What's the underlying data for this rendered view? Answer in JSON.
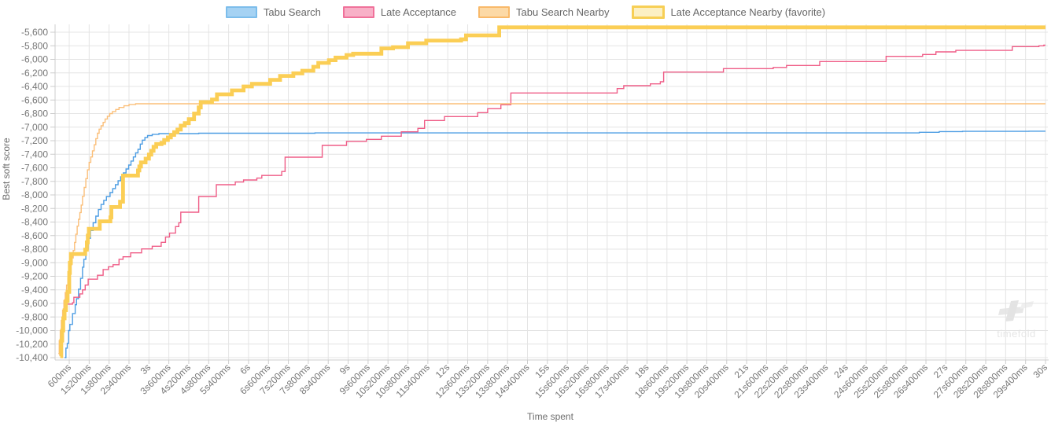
{
  "watermark": {
    "text": "timefold"
  },
  "chart_data": {
    "type": "line",
    "title": "",
    "xlabel": "Time spent",
    "ylabel": "Best soft score",
    "grid": true,
    "legend_position": "top-center",
    "x_tick_labels": [
      "600ms",
      "1s200ms",
      "1s800ms",
      "2s400ms",
      "3s",
      "3s600ms",
      "4s200ms",
      "4s800ms",
      "5s400ms",
      "6s",
      "6s600ms",
      "7s200ms",
      "7s800ms",
      "8s400ms",
      "9s",
      "9s600ms",
      "10s200ms",
      "10s800ms",
      "11s400ms",
      "12s",
      "12s600ms",
      "13s200ms",
      "13s800ms",
      "14s400ms",
      "15s",
      "15s600ms",
      "16s200ms",
      "16s800ms",
      "17s400ms",
      "18s",
      "18s600ms",
      "19s200ms",
      "19s800ms",
      "20s400ms",
      "21s",
      "21s600ms",
      "22s200ms",
      "22s800ms",
      "23s400ms",
      "24s",
      "24s600ms",
      "25s200ms",
      "25s800ms",
      "26s400ms",
      "27s",
      "27s600ms",
      "28s200ms",
      "28s800ms",
      "29s400ms",
      "30s"
    ],
    "y_tick_labels": [
      "-5,600",
      "-5,800",
      "-6,000",
      "-6,200",
      "-6,400",
      "-6,600",
      "-6,800",
      "-7,000",
      "-7,200",
      "-7,400",
      "-7,600",
      "-7,800",
      "-8,000",
      "-8,200",
      "-8,400",
      "-8,600",
      "-8,800",
      "-9,000",
      "-9,200",
      "-9,400",
      "-9,600",
      "-9,800",
      "-10,000",
      "-10,200",
      "-10,400"
    ],
    "x_range_seconds": [
      0.17,
      30
    ],
    "y_range": [
      -10440,
      -5480
    ],
    "colors": {
      "grid": "#e4e4e4",
      "axis": "#cccccc",
      "tick_label": "#777777",
      "axis_title": "#6e6e6e",
      "legend_text": "#666666",
      "watermark": "#e8e8e8"
    },
    "series": [
      {
        "name": "Tabu Search",
        "color": "#4d9de3",
        "chip_fill": "#a5d2f3",
        "chip_border": "#7cbdeb",
        "width": 1.4,
        "favorite": false,
        "points": [
          [
            0.46,
            -10400
          ],
          [
            0.5,
            -10260
          ],
          [
            0.54,
            -10190
          ],
          [
            0.58,
            -10000
          ],
          [
            0.62,
            -9910
          ],
          [
            0.7,
            -9750
          ],
          [
            0.78,
            -9620
          ],
          [
            0.82,
            -9530
          ],
          [
            0.88,
            -9390
          ],
          [
            0.94,
            -9230
          ],
          [
            1.0,
            -9065
          ],
          [
            1.04,
            -8950
          ],
          [
            1.1,
            -8800
          ],
          [
            1.17,
            -8640
          ],
          [
            1.24,
            -8525
          ],
          [
            1.32,
            -8410
          ],
          [
            1.4,
            -8313
          ],
          [
            1.48,
            -8216
          ],
          [
            1.56,
            -8140
          ],
          [
            1.64,
            -8080
          ],
          [
            1.72,
            -8023
          ],
          [
            1.83,
            -7965
          ],
          [
            1.91,
            -7907
          ],
          [
            1.99,
            -7849
          ],
          [
            2.07,
            -7790
          ],
          [
            2.15,
            -7732
          ],
          [
            2.23,
            -7675
          ],
          [
            2.31,
            -7617
          ],
          [
            2.39,
            -7559
          ],
          [
            2.46,
            -7500
          ],
          [
            2.53,
            -7440
          ],
          [
            2.6,
            -7380
          ],
          [
            2.67,
            -7327
          ],
          [
            2.74,
            -7250
          ],
          [
            2.8,
            -7192
          ],
          [
            2.88,
            -7153
          ],
          [
            2.96,
            -7125
          ],
          [
            3.1,
            -7106
          ],
          [
            3.3,
            -7096
          ],
          [
            4.5,
            -7090
          ],
          [
            8.0,
            -7085
          ],
          [
            26.2,
            -7076
          ],
          [
            26.8,
            -7066
          ],
          [
            27.5,
            -7062
          ],
          [
            29.5,
            -7060
          ]
        ]
      },
      {
        "name": "Late Acceptance",
        "color": "#ef5d87",
        "chip_fill": "#f8b0c7",
        "chip_border": "#f0719a",
        "width": 1.4,
        "favorite": false,
        "points": [
          [
            0.3,
            -10360
          ],
          [
            0.34,
            -10150
          ],
          [
            0.38,
            -9950
          ],
          [
            0.42,
            -9820
          ],
          [
            0.46,
            -9700
          ],
          [
            0.5,
            -9610
          ],
          [
            0.7,
            -9590
          ],
          [
            0.74,
            -9510
          ],
          [
            0.92,
            -9460
          ],
          [
            1.0,
            -9400
          ],
          [
            1.08,
            -9330
          ],
          [
            1.17,
            -9243
          ],
          [
            1.45,
            -9185
          ],
          [
            1.62,
            -9100
          ],
          [
            1.78,
            -9060
          ],
          [
            1.92,
            -9030
          ],
          [
            2.1,
            -8950
          ],
          [
            2.22,
            -8912
          ],
          [
            2.45,
            -8854
          ],
          [
            2.78,
            -8796
          ],
          [
            3.1,
            -8757
          ],
          [
            3.37,
            -8699
          ],
          [
            3.5,
            -8622
          ],
          [
            3.62,
            -8564
          ],
          [
            3.8,
            -8467
          ],
          [
            3.9,
            -8410
          ],
          [
            3.96,
            -8255
          ],
          [
            4.5,
            -8023
          ],
          [
            5.03,
            -7849
          ],
          [
            5.6,
            -7810
          ],
          [
            5.85,
            -7780
          ],
          [
            6.25,
            -7752
          ],
          [
            6.4,
            -7713
          ],
          [
            7.0,
            -7655
          ],
          [
            7.1,
            -7443
          ],
          [
            8.22,
            -7269
          ],
          [
            8.95,
            -7211
          ],
          [
            9.55,
            -7180
          ],
          [
            10.0,
            -7134
          ],
          [
            10.6,
            -7069
          ],
          [
            11.1,
            -7018
          ],
          [
            11.3,
            -6902
          ],
          [
            11.9,
            -6844
          ],
          [
            12.9,
            -6786
          ],
          [
            13.2,
            -6728
          ],
          [
            13.6,
            -6670
          ],
          [
            13.9,
            -6496
          ],
          [
            17.1,
            -6431
          ],
          [
            17.3,
            -6388
          ],
          [
            18.1,
            -6362
          ],
          [
            18.4,
            -6330
          ],
          [
            18.5,
            -6188
          ],
          [
            20.3,
            -6137
          ],
          [
            21.8,
            -6120
          ],
          [
            22.2,
            -6090
          ],
          [
            23.2,
            -6032
          ],
          [
            25.2,
            -5956
          ],
          [
            26.3,
            -5928
          ],
          [
            26.7,
            -5890
          ],
          [
            27.3,
            -5868
          ],
          [
            29.0,
            -5812
          ],
          [
            29.8,
            -5800
          ],
          [
            29.95,
            -5790
          ]
        ]
      },
      {
        "name": "Tabu Search Nearby",
        "color": "#fbbf79",
        "chip_fill": "#fcd9a6",
        "chip_border": "#f9b969",
        "width": 1.4,
        "favorite": false,
        "points": [
          [
            0.27,
            -10340
          ],
          [
            0.3,
            -10150
          ],
          [
            0.33,
            -10000
          ],
          [
            0.36,
            -9850
          ],
          [
            0.4,
            -9700
          ],
          [
            0.44,
            -9560
          ],
          [
            0.48,
            -9440
          ],
          [
            0.52,
            -9330
          ],
          [
            0.56,
            -9230
          ],
          [
            0.6,
            -9130
          ],
          [
            0.64,
            -9030
          ],
          [
            0.68,
            -8930
          ],
          [
            0.72,
            -8820
          ],
          [
            0.76,
            -8700
          ],
          [
            0.8,
            -8580
          ],
          [
            0.84,
            -8460
          ],
          [
            0.88,
            -8360
          ],
          [
            0.92,
            -8260
          ],
          [
            0.96,
            -8150
          ],
          [
            1.0,
            -8020
          ],
          [
            1.05,
            -7890
          ],
          [
            1.1,
            -7760
          ],
          [
            1.15,
            -7630
          ],
          [
            1.2,
            -7520
          ],
          [
            1.25,
            -7440
          ],
          [
            1.3,
            -7350
          ],
          [
            1.35,
            -7260
          ],
          [
            1.4,
            -7170
          ],
          [
            1.45,
            -7090
          ],
          [
            1.5,
            -7030
          ],
          [
            1.56,
            -6980
          ],
          [
            1.62,
            -6930
          ],
          [
            1.68,
            -6880
          ],
          [
            1.75,
            -6840
          ],
          [
            1.82,
            -6800
          ],
          [
            1.9,
            -6770
          ],
          [
            2.0,
            -6740
          ],
          [
            2.1,
            -6710
          ],
          [
            2.25,
            -6685
          ],
          [
            2.4,
            -6665
          ],
          [
            2.6,
            -6655
          ]
        ]
      },
      {
        "name": "Late Acceptance Nearby (favorite)",
        "color": "#fbce55",
        "chip_fill": "#fcf0c3",
        "chip_border": "#f7cf55",
        "width": 4.8,
        "favorite": true,
        "points": [
          [
            0.33,
            -10380
          ],
          [
            0.36,
            -10150
          ],
          [
            0.39,
            -10000
          ],
          [
            0.42,
            -9820
          ],
          [
            0.46,
            -9700
          ],
          [
            0.5,
            -9565
          ],
          [
            0.55,
            -9430
          ],
          [
            0.6,
            -9150
          ],
          [
            0.62,
            -9000
          ],
          [
            0.65,
            -8872
          ],
          [
            1.08,
            -8808
          ],
          [
            1.13,
            -8700
          ],
          [
            1.16,
            -8600
          ],
          [
            1.19,
            -8500
          ],
          [
            1.52,
            -8390
          ],
          [
            1.84,
            -8330
          ],
          [
            1.87,
            -8178
          ],
          [
            2.13,
            -8100
          ],
          [
            2.22,
            -7715
          ],
          [
            2.67,
            -7640
          ],
          [
            2.71,
            -7580
          ],
          [
            2.76,
            -7520
          ],
          [
            2.9,
            -7465
          ],
          [
            3.0,
            -7405
          ],
          [
            3.07,
            -7350
          ],
          [
            3.14,
            -7290
          ],
          [
            3.22,
            -7250
          ],
          [
            3.38,
            -7232
          ],
          [
            3.46,
            -7190
          ],
          [
            3.57,
            -7153
          ],
          [
            3.66,
            -7114
          ],
          [
            3.76,
            -7075
          ],
          [
            3.86,
            -7037
          ],
          [
            3.96,
            -6979
          ],
          [
            4.08,
            -6941
          ],
          [
            4.2,
            -6883
          ],
          [
            4.36,
            -6800
          ],
          [
            4.5,
            -6709
          ],
          [
            4.56,
            -6631
          ],
          [
            4.9,
            -6593
          ],
          [
            5.05,
            -6516
          ],
          [
            5.5,
            -6458
          ],
          [
            5.85,
            -6400
          ],
          [
            6.1,
            -6361
          ],
          [
            6.65,
            -6303
          ],
          [
            6.95,
            -6245
          ],
          [
            7.35,
            -6206
          ],
          [
            7.62,
            -6168
          ],
          [
            7.95,
            -6110
          ],
          [
            8.1,
            -6052
          ],
          [
            8.42,
            -6013
          ],
          [
            8.62,
            -5974
          ],
          [
            8.95,
            -5936
          ],
          [
            9.15,
            -5917
          ],
          [
            10.0,
            -5839
          ],
          [
            10.35,
            -5820
          ],
          [
            10.8,
            -5762
          ],
          [
            11.35,
            -5723
          ],
          [
            12.4,
            -5704
          ],
          [
            12.55,
            -5646
          ],
          [
            13.55,
            -5528
          ]
        ]
      }
    ]
  }
}
